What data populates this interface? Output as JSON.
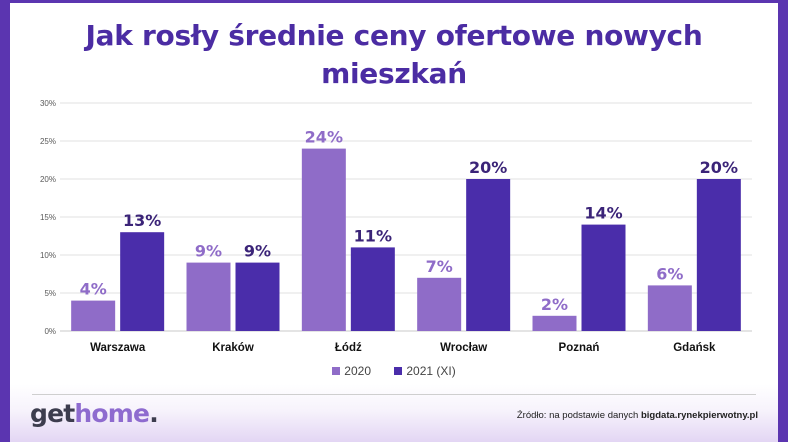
{
  "chart_data": {
    "type": "bar",
    "title": "Jak rosły średnie ceny ofertowe nowych mieszkań",
    "title_lines": [
      "Jak rosły średnie ceny ofertowe nowych",
      "mieszkań"
    ],
    "categories": [
      "Warszawa",
      "Kraków",
      "Łódź",
      "Wrocław",
      "Poznań",
      "Gdańsk"
    ],
    "series": [
      {
        "name": "2020",
        "values": [
          4,
          9,
          24,
          7,
          2,
          6
        ],
        "labels": [
          "4%",
          "9%",
          "24%",
          "7%",
          "2%",
          "6%"
        ],
        "color": "#8f6cc8",
        "label_color": "#8f6cc8"
      },
      {
        "name": "2021 (XI)",
        "values": [
          13,
          9,
          11,
          20,
          14,
          20
        ],
        "labels": [
          "13%",
          "9%",
          "11%",
          "20%",
          "14%",
          "20%"
        ],
        "color": "#4a2daa",
        "label_color": "#3b2478"
      }
    ],
    "ylim": [
      0,
      30
    ],
    "yticks": [
      0,
      5,
      10,
      15,
      20,
      25,
      30
    ],
    "ytick_labels": [
      "0%",
      "5%",
      "10%",
      "15%",
      "20%",
      "25%",
      "30%"
    ],
    "xlabel": "",
    "ylabel": "",
    "grid": true,
    "legend": "bottom-center"
  },
  "footer": {
    "logo_get": "get",
    "logo_home": "home",
    "logo_dot": ".",
    "source_prefix": "Źródło: na podstawie danych ",
    "source_strong": "bigdata.rynekpierwotny.pl"
  },
  "colors": {
    "frame": "#5b35b0",
    "title": "#4b2ca3"
  }
}
